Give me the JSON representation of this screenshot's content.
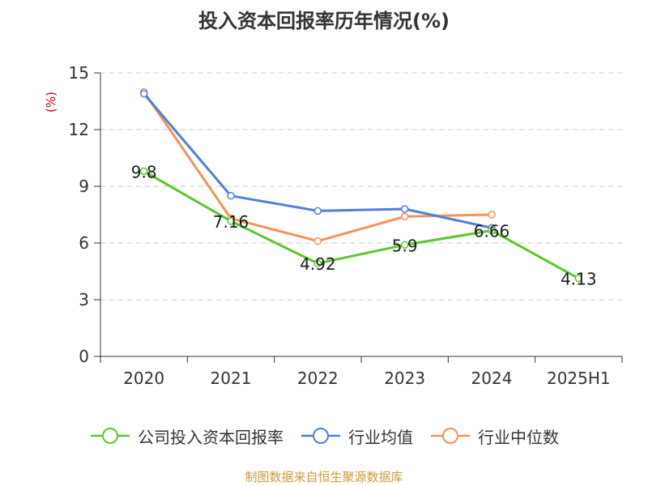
{
  "title": "投入资本回报率历年情况(%)",
  "source": "制图数据来自恒生聚源数据库",
  "chart_data": {
    "type": "line",
    "ylabel": "(%)",
    "ylim": [
      0,
      15
    ],
    "yticks": [
      "0",
      "3",
      "6",
      "9",
      "12",
      "15"
    ],
    "categories": [
      "2020",
      "2021",
      "2022",
      "2023",
      "2024",
      "2025H1"
    ],
    "grid": true,
    "legend_position": "bottom",
    "series": [
      {
        "name": "公司投入资本回报率",
        "color": "#5ac72f",
        "values": [
          9.8,
          7.16,
          4.92,
          5.9,
          6.66,
          4.13
        ],
        "labels": [
          "9.8",
          "7.16",
          "4.92",
          "5.9",
          "6.66",
          "4.13"
        ]
      },
      {
        "name": "行业均值",
        "color": "#4f7fd9",
        "values": [
          13.9,
          8.5,
          7.7,
          7.8,
          6.8,
          null
        ]
      },
      {
        "name": "行业中位数",
        "color": "#f4925a",
        "values": [
          14.0,
          7.3,
          6.1,
          7.4,
          7.5,
          null
        ]
      }
    ]
  }
}
